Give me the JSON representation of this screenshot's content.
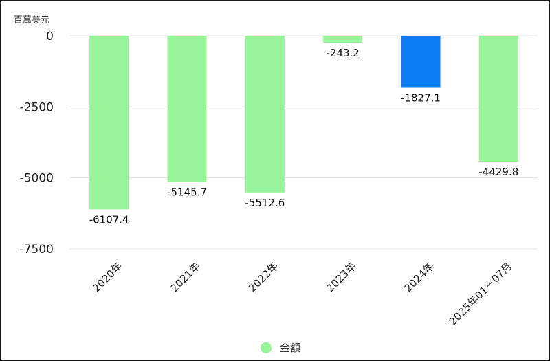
{
  "chart_data": {
    "type": "bar",
    "unit_label": "百萬美元",
    "categories": [
      "2020年",
      "2021年",
      "2022年",
      "2023年",
      "2024年",
      "2025年01－07月"
    ],
    "series": [
      {
        "name": "金額",
        "values": [
          -6107.4,
          -5145.7,
          -5512.6,
          -243.2,
          -1827.1,
          -4429.8
        ],
        "value_labels": [
          "-6107.4",
          "-5145.7",
          "-5512.6",
          "-243.2",
          "-1827.1",
          "-4429.8"
        ]
      }
    ],
    "ylim": [
      -7500,
      0
    ],
    "yticks": [
      0,
      -2500,
      -5000,
      -7500
    ],
    "grid": true,
    "legend_position": "bottom",
    "colors": {
      "bar": "#98f49a",
      "highlight_bar": "#0f7cf5",
      "grid": "#e4e4e4"
    },
    "highlight_index": 4
  }
}
